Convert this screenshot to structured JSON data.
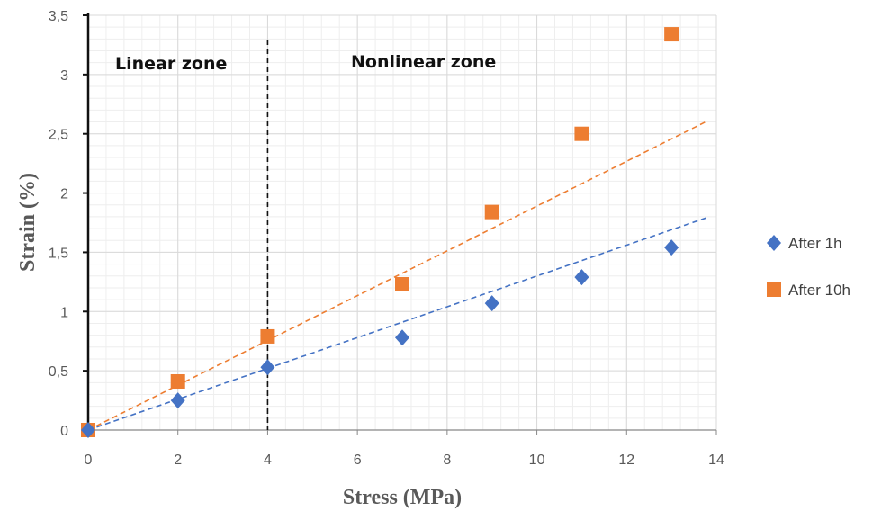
{
  "chart_data": {
    "type": "scatter",
    "xlabel": "Stress (MPa)",
    "ylabel": "Strain   (%)",
    "xlim": [
      0,
      14
    ],
    "ylim": [
      0,
      3.5
    ],
    "x_ticks": [
      "0",
      "2",
      "4",
      "6",
      "8",
      "10",
      "12",
      "14"
    ],
    "y_ticks": [
      "0",
      "0,5",
      "1",
      "1,5",
      "2",
      "2,5",
      "3",
      "3,5"
    ],
    "grid": true,
    "legend_position": "right",
    "annotations": [
      {
        "text": "Linear zone"
      },
      {
        "text": "Nonlinear zone"
      }
    ],
    "divider_x": 4,
    "series": [
      {
        "name": "After 1h",
        "marker": "diamond",
        "color": "#4472C4",
        "x": [
          0,
          2,
          4,
          7,
          9,
          11,
          13
        ],
        "y": [
          0,
          0.25,
          0.53,
          0.78,
          1.07,
          1.29,
          1.54
        ],
        "trendline": {
          "type": "linear",
          "slope": 0.13,
          "x_end": 13.8
        }
      },
      {
        "name": "After 10h",
        "marker": "square",
        "color": "#ED7D31",
        "x": [
          0,
          2,
          4,
          7,
          9,
          11,
          13
        ],
        "y": [
          0,
          0.41,
          0.79,
          1.23,
          1.84,
          2.5,
          3.34
        ],
        "trendline": {
          "type": "linear",
          "slope": 0.189,
          "x_end": 13.8
        }
      }
    ]
  }
}
